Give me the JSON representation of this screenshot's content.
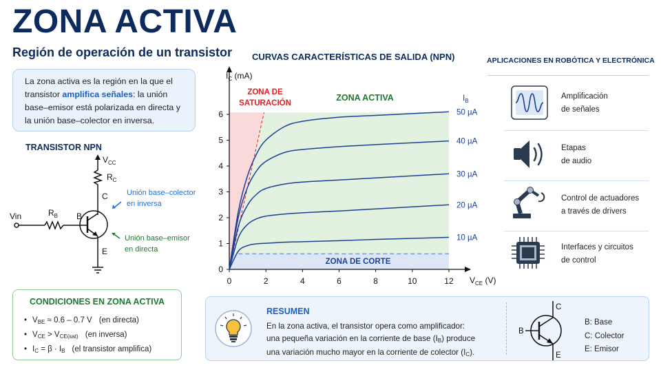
{
  "header": {
    "title": "ZONA ACTIVA",
    "subtitle": "Región de operación de un transistor"
  },
  "intro": {
    "before": "La zona activa es la región en la que el transistor ",
    "highlight": "amplifica señales",
    "after": ": la unión base–emisor está polarizada en directa y la unión base–colector en inversa."
  },
  "circuit": {
    "title": "TRANSISTOR NPN",
    "vcc": "V",
    "vcc_sub": "CC",
    "rc": "R",
    "rc_sub": "C",
    "rb": "R",
    "rb_sub": "B",
    "vin": "Vin",
    "b": "B",
    "c": "C",
    "e": "E",
    "bc_note": [
      "Unión base–colector",
      "en inversa"
    ],
    "be_note": [
      "Unión base–emisor",
      "en directa"
    ]
  },
  "conditions": {
    "title": "CONDICIONES EN ZONA ACTIVA",
    "items": [
      {
        "a": "V",
        "a_sub": "BE",
        "b": " ≈ 0.6 – 0.7 V",
        "b_sub": "",
        "c": "",
        "note": "(en directa)"
      },
      {
        "a": "V",
        "a_sub": "CE",
        "b": " > V",
        "b_sub": "CE(sat)",
        "c": "",
        "note": "(en inversa)"
      },
      {
        "a": "I",
        "a_sub": "C",
        "b": " = β · I",
        "b_sub": "B",
        "c": "",
        "note": "(el transistor amplifica)"
      }
    ]
  },
  "chart_data": {
    "type": "line",
    "title": "CURVAS CARACTERÍSTICAS DE SALIDA (NPN)",
    "xlabel": "V",
    "xlabel_sub": "CE",
    "xlabel_unit": " (V)",
    "ylabel": "I",
    "ylabel_sub": "C",
    "ylabel_unit": " (mA)",
    "xlim": [
      0,
      12
    ],
    "ylim": [
      0,
      6
    ],
    "xticks": [
      0,
      2,
      4,
      6,
      8,
      10,
      12
    ],
    "yticks": [
      0,
      1,
      2,
      3,
      4,
      5,
      6
    ],
    "legend_title": "I",
    "legend_title_sub": "B",
    "x": [
      0,
      0.5,
      1,
      1.5,
      2,
      3,
      4,
      6,
      8,
      10,
      12
    ],
    "series": [
      {
        "name": "10 µA",
        "values": [
          0,
          0.71,
          0.92,
          0.99,
          1.01,
          1.05,
          1.07,
          1.11,
          1.16,
          1.2,
          1.24
        ]
      },
      {
        "name": "20 µA",
        "values": [
          0,
          1.23,
          1.74,
          1.96,
          2.06,
          2.14,
          2.19,
          2.26,
          2.34,
          2.42,
          2.5
        ]
      },
      {
        "name": "30 µA",
        "values": [
          0,
          1.67,
          2.49,
          2.91,
          3.13,
          3.3,
          3.38,
          3.46,
          3.54,
          3.62,
          3.7
        ]
      },
      {
        "name": "40 µA",
        "values": [
          0,
          2.04,
          3.18,
          3.82,
          4.18,
          4.52,
          4.64,
          4.75,
          4.83,
          4.9,
          4.97
        ]
      },
      {
        "name": "50 µA",
        "values": [
          0,
          2.26,
          3.63,
          4.48,
          5.0,
          5.52,
          5.73,
          5.89,
          5.96,
          6.03,
          6.1
        ]
      }
    ],
    "regions": {
      "saturation": {
        "label": [
          "ZONA DE",
          "SATURACIÓN"
        ],
        "color": "#f9d9d9",
        "boundary_line": [
          [
            0,
            0
          ],
          [
            1.9,
            6.07
          ]
        ]
      },
      "active": {
        "label": "ZONA ACTIVA",
        "color": "#e3f1e0"
      },
      "cutoff": {
        "label": "ZONA DE CORTE",
        "color": "#dce6f5",
        "boundary_ic": 0.6
      }
    },
    "grid": false,
    "colors": {
      "curve": "#1c3f94",
      "saturation_text": "#e02020",
      "active_text": "#1e7a2e",
      "cutoff_text": "#1c3f94"
    }
  },
  "apps": {
    "title": "APLICACIONES EN ROBÓTICA Y ELECTRÓNICA",
    "items": [
      {
        "icon": "waveform-icon",
        "lines": [
          "Amplificación",
          "de señales"
        ]
      },
      {
        "icon": "speaker-icon",
        "lines": [
          "Etapas",
          "de audio"
        ]
      },
      {
        "icon": "robot-arm-icon",
        "lines": [
          "Control de actuadores",
          "a través de drivers"
        ]
      },
      {
        "icon": "chip-icon",
        "lines": [
          "Interfaces y circuitos",
          "de control"
        ]
      }
    ]
  },
  "summary": {
    "title": "RESUMEN",
    "line1": "En la zona activa, el transistor opera como amplificador:",
    "line2a": "una pequeña variación en la corriente de base (I",
    "line2_sub": "B",
    "line2b": ") produce",
    "line3a": "una variación mucho mayor en la corriente de colector (I",
    "line3_sub": "C",
    "line3b": ").",
    "symbol": {
      "b": "B",
      "c": "C",
      "e": "E"
    },
    "legend": [
      "B: Base",
      "C: Colector",
      "E: Emisor"
    ]
  }
}
